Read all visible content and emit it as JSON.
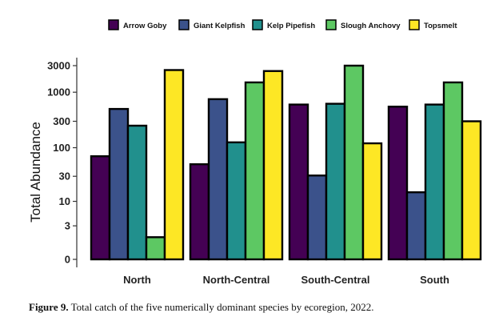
{
  "chart_data": {
    "type": "bar",
    "title": "",
    "xlabel": "",
    "ylabel": "Total Abundance",
    "yscale": "log",
    "yticks": [
      "0",
      "3",
      "10",
      "30",
      "100",
      "300",
      "1000",
      "3000"
    ],
    "ylim": [
      0,
      3000
    ],
    "legend_position": "top",
    "grid": false,
    "categories": [
      "North",
      "North-Central",
      "South-Central",
      "South"
    ],
    "series": [
      {
        "name": "Arrow Goby",
        "color": "#440154",
        "values": [
          70,
          50,
          600,
          550
        ]
      },
      {
        "name": "Giant Kelpfish",
        "color": "#3b528b",
        "values": [
          500,
          750,
          31,
          15
        ]
      },
      {
        "name": "Kelp Pipefish",
        "color": "#21908d",
        "values": [
          250,
          125,
          620,
          600
        ]
      },
      {
        "name": "Slough Anchovy",
        "color": "#5dc863",
        "values": [
          1.5,
          1500,
          3000,
          1500
        ]
      },
      {
        "name": "Topsmelt",
        "color": "#fde725",
        "values": [
          2500,
          2400,
          120,
          300
        ]
      }
    ]
  },
  "caption": {
    "label": "Figure 9.",
    "text": " Total catch of the five numerically dominant species by ecoregion, 2022."
  }
}
